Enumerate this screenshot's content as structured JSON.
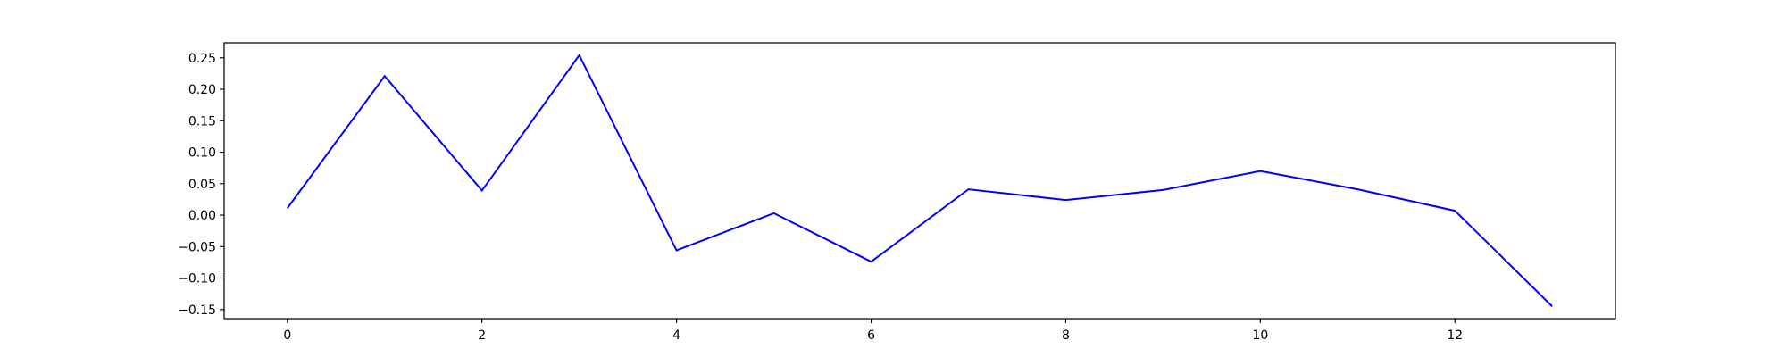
{
  "chart_data": {
    "type": "line",
    "title": "",
    "xlabel": "",
    "ylabel": "",
    "xlim": [
      -0.65,
      13.65
    ],
    "ylim": [
      -0.1645,
      0.2738
    ],
    "grid": false,
    "legend": "none",
    "x_ticks": [
      0,
      2,
      4,
      6,
      8,
      10,
      12
    ],
    "x_tick_labels": [
      "0",
      "2",
      "4",
      "6",
      "8",
      "10",
      "12"
    ],
    "y_ticks": [
      -0.15,
      -0.1,
      -0.05,
      0.0,
      0.05,
      0.1,
      0.15,
      0.2,
      0.25
    ],
    "y_tick_labels": [
      "−0.15",
      "−0.10",
      "−0.05",
      "0.00",
      "0.05",
      "0.10",
      "0.15",
      "0.20",
      "0.25"
    ],
    "series": [
      {
        "color": "#0000ff",
        "x": [
          0,
          1,
          2,
          3,
          4,
          5,
          6,
          7,
          8,
          9,
          10,
          11,
          12,
          13
        ],
        "values": [
          0.011,
          0.221,
          0.039,
          0.254,
          -0.056,
          0.003,
          -0.074,
          0.041,
          0.024,
          0.04,
          0.07,
          0.041,
          0.007,
          -0.145
        ]
      }
    ]
  }
}
